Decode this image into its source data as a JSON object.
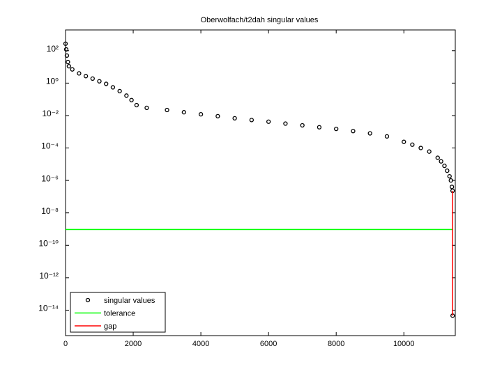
{
  "chart_data": {
    "type": "line",
    "title": "Oberwolfach/t2dah singular values",
    "xlim": [
      0,
      11520
    ],
    "xticks": [
      0,
      2000,
      4000,
      6000,
      8000,
      10000
    ],
    "ylim": [
      2.7e-16,
      1900
    ],
    "log_y": true,
    "yticks": [
      {
        "value": 1e-14,
        "label": "10⁻¹⁴"
      },
      {
        "value": 1e-12,
        "label": "10⁻¹²"
      },
      {
        "value": 1e-10,
        "label": "10⁻¹⁰"
      },
      {
        "value": 1e-08,
        "label": "10⁻⁸"
      },
      {
        "value": 1e-06,
        "label": "10⁻⁶"
      },
      {
        "value": 0.0001,
        "label": "10⁻⁴"
      },
      {
        "value": 0.01,
        "label": "10⁻²"
      },
      {
        "value": 1,
        "label": "10⁰"
      },
      {
        "value": 100,
        "label": "10²"
      }
    ],
    "legend": "lower left",
    "series": [
      {
        "name": "singular values",
        "color": "#000000",
        "style": "markers",
        "x": [
          0,
          20,
          40,
          70,
          100,
          200,
          400,
          600,
          800,
          1000,
          1200,
          1400,
          1600,
          1800,
          1950,
          2100,
          2400,
          3000,
          3500,
          4000,
          4500,
          5000,
          5500,
          6000,
          6500,
          7000,
          7500,
          8000,
          8500,
          9000,
          9500,
          10000,
          10250,
          10500,
          10750,
          11000,
          11100,
          11200,
          11280,
          11350,
          11390,
          11420,
          11440,
          11441
        ],
        "values": [
          270,
          120,
          50,
          20,
          11,
          7,
          4,
          2.7,
          1.9,
          1.3,
          0.9,
          0.55,
          0.32,
          0.17,
          0.09,
          0.044,
          0.03,
          0.022,
          0.016,
          0.012,
          0.0091,
          0.0068,
          0.0053,
          0.0042,
          0.0032,
          0.0025,
          0.0019,
          0.0015,
          0.0011,
          0.0008,
          0.00052,
          0.00024,
          0.00016,
          0.0001,
          6e-05,
          2.5e-05,
          1.5e-05,
          8e-06,
          4e-06,
          1.8e-06,
          1e-06,
          4e-07,
          2.3e-07,
          4.6e-15
        ]
      },
      {
        "name": "tolerance",
        "color": "#00ff00",
        "style": "line",
        "x": [
          0,
          11441
        ],
        "values": [
          9.5e-10,
          9.5e-10
        ]
      },
      {
        "name": "gap",
        "color": "#ff0000",
        "style": "line",
        "x": [
          11441,
          11441
        ],
        "values": [
          4.6e-15,
          2.3e-07
        ]
      }
    ]
  }
}
